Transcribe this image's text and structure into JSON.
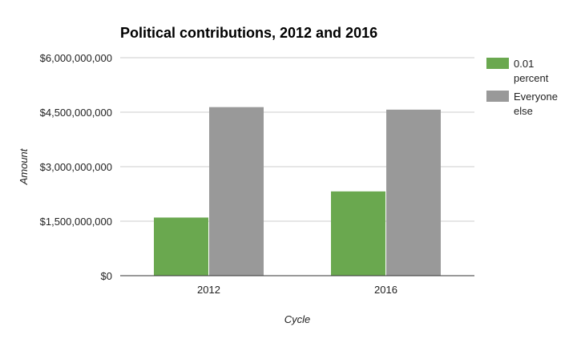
{
  "chart_data": {
    "type": "bar",
    "title": "Political contributions, 2012 and 2016",
    "xlabel": "Cycle",
    "ylabel": "Amount",
    "categories": [
      "2012",
      "2016"
    ],
    "series": [
      {
        "name": "0.01 percent",
        "legend_lines": [
          "0.01",
          "percent"
        ],
        "color": "#6aa84f",
        "values": [
          1600000000,
          2320000000
        ]
      },
      {
        "name": "Everyone else",
        "legend_lines": [
          "Everyone",
          "else"
        ],
        "color": "#999999",
        "values": [
          4640000000,
          4570000000
        ]
      }
    ],
    "ylim": [
      0,
      6000000000
    ],
    "yticks": [
      0,
      1500000000,
      3000000000,
      4500000000,
      6000000000
    ],
    "ytick_labels": [
      "$0",
      "$1,500,000,000",
      "$3,000,000,000",
      "$4,500,000,000",
      "$6,000,000,000"
    ],
    "grid": true,
    "legend_position": "right"
  }
}
